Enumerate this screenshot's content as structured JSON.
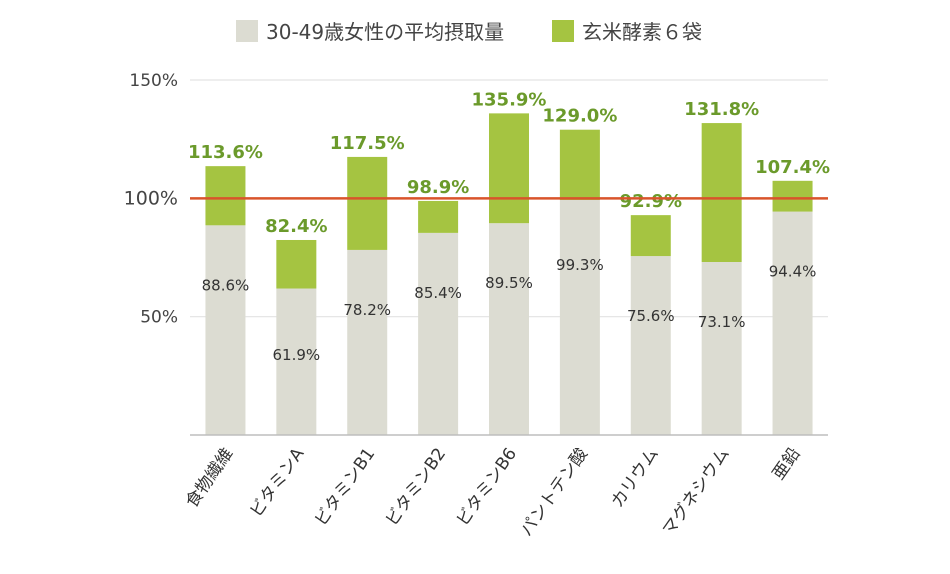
{
  "colors": {
    "base": "#dcdcd2",
    "added": "#a5c441",
    "reference_line": "#d9542b",
    "grid": "#e3e3e3",
    "axis": "#bdbdbd",
    "total_label": "#6b9a2b"
  },
  "chart_data": {
    "type": "bar",
    "stacked": true,
    "categories": [
      "食物繊維",
      "ビタミンA",
      "ビタミンB1",
      "ビタミンB2",
      "ビタミンB6",
      "パントテン酸",
      "カリウム",
      "マグネシウム",
      "亜鉛"
    ],
    "series": [
      {
        "name": "30-49歳女性の平均摂取量",
        "values": [
          88.6,
          61.9,
          78.2,
          85.4,
          89.5,
          99.3,
          75.6,
          73.1,
          94.4
        ]
      },
      {
        "name": "玄米酵素６袋",
        "values": [
          25.0,
          20.5,
          39.3,
          13.5,
          46.4,
          29.7,
          17.3,
          58.7,
          13.0
        ]
      }
    ],
    "base_labels": [
      "88.6%",
      "61.9%",
      "78.2%",
      "85.4%",
      "89.5%",
      "99.3%",
      "75.6%",
      "73.1%",
      "94.4%"
    ],
    "totals": [
      113.6,
      82.4,
      117.5,
      98.9,
      135.9,
      129.0,
      92.9,
      131.8,
      107.4
    ],
    "total_labels": [
      "113.6%",
      "82.4%",
      "117.5%",
      "98.9%",
      "135.9%",
      "129.0%",
      "92.9%",
      "131.8%",
      "107.4%"
    ],
    "y_ticks": [
      50,
      100,
      150
    ],
    "y_tick_labels": [
      "50%",
      "100%",
      "150%"
    ],
    "reference_value": 100,
    "ylim": [
      0,
      150
    ],
    "legend_position": "top",
    "grid": true
  }
}
